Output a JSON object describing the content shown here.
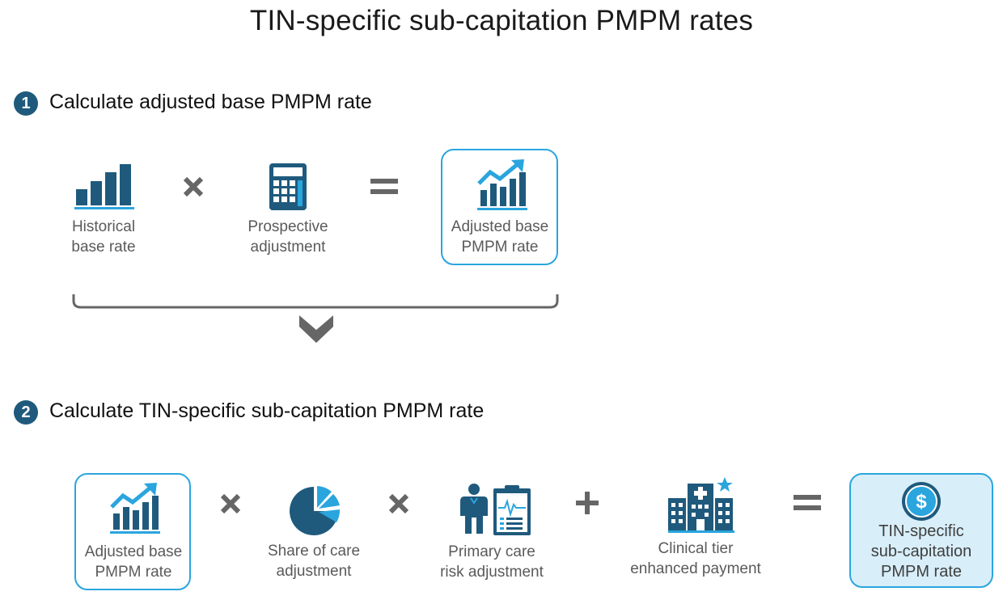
{
  "title": "TIN-specific sub-capitation PMPM rates",
  "colors": {
    "navy": "#1f5a7d",
    "accent_blue": "#2aa5de",
    "light_fill": "#d8eef9",
    "operator_gray": "#666666",
    "text_gray": "#5a5a5a"
  },
  "step1": {
    "number": "1",
    "heading": "Calculate adjusted base PMPM rate",
    "items": [
      {
        "icon": "bar-chart-icon",
        "line1": "Historical",
        "line2": "base rate"
      },
      {
        "icon": "calculator-icon",
        "line1": "Prospective",
        "line2": "adjustment"
      },
      {
        "icon": "trend-chart-icon",
        "line1": "Adjusted base",
        "line2": "PMPM rate"
      }
    ],
    "operators": [
      "×",
      "="
    ]
  },
  "step2": {
    "number": "2",
    "heading": "Calculate TIN-specific sub-capitation PMPM rate",
    "items": [
      {
        "icon": "trend-chart-icon",
        "line1": "Adjusted base",
        "line2": "PMPM rate"
      },
      {
        "icon": "pie-chart-icon",
        "line1": "Share of care",
        "line2": "adjustment"
      },
      {
        "icon": "doctor-clipboard-icon",
        "line1": "Primary care",
        "line2": "risk adjustment"
      },
      {
        "icon": "hospital-icon",
        "line1": "Clinical tier",
        "line2": "enhanced payment"
      },
      {
        "icon": "dollar-coin-icon",
        "line1": "TIN-specific",
        "line2": "sub-capitation",
        "line3": "PMPM rate"
      }
    ],
    "operators": [
      "×",
      "×",
      "+",
      "="
    ]
  }
}
